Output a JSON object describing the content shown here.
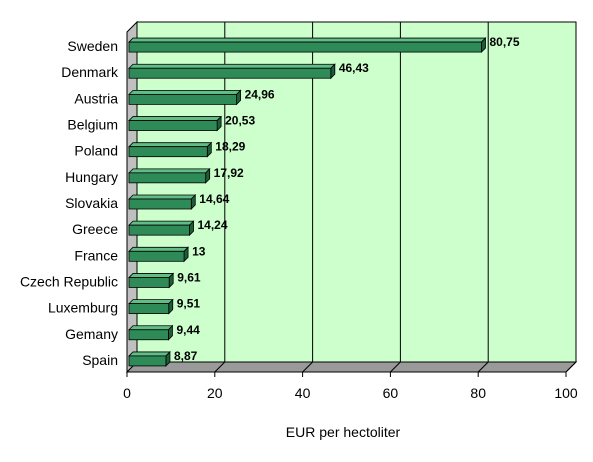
{
  "chart_data": {
    "type": "bar",
    "orientation": "horizontal",
    "categories": [
      "Sweden",
      "Denmark",
      "Austria",
      "Belgium",
      "Poland",
      "Hungary",
      "Slovakia",
      "Greece",
      "France",
      "Czech Republic",
      "Luxemburg",
      "Gemany",
      "Spain"
    ],
    "values": [
      80.75,
      46.43,
      24.96,
      20.53,
      18.29,
      17.92,
      14.64,
      14.24,
      13,
      9.61,
      9.51,
      9.44,
      8.87
    ],
    "data_labels": [
      "80,75",
      "46,43",
      "24,96",
      "20,53",
      "18,29",
      "17,92",
      "14,64",
      "14,24",
      "13",
      "9,61",
      "9,51",
      "9,44",
      "8,87"
    ],
    "xlabel": "EUR per hectoliter",
    "ylabel": "",
    "xlim": [
      0,
      100
    ],
    "ticks": [
      0,
      20,
      40,
      60,
      80,
      100
    ],
    "grid": true,
    "legend": "none",
    "style": "3d",
    "colors": {
      "bar_front": "#2e8b57",
      "bar_top": "#5fbd85",
      "bar_side": "#1e5c3a",
      "plot_back": "#ccffcc",
      "plot_floor": "#9a9a9a",
      "plot_wall": "#c0c0c0"
    }
  }
}
